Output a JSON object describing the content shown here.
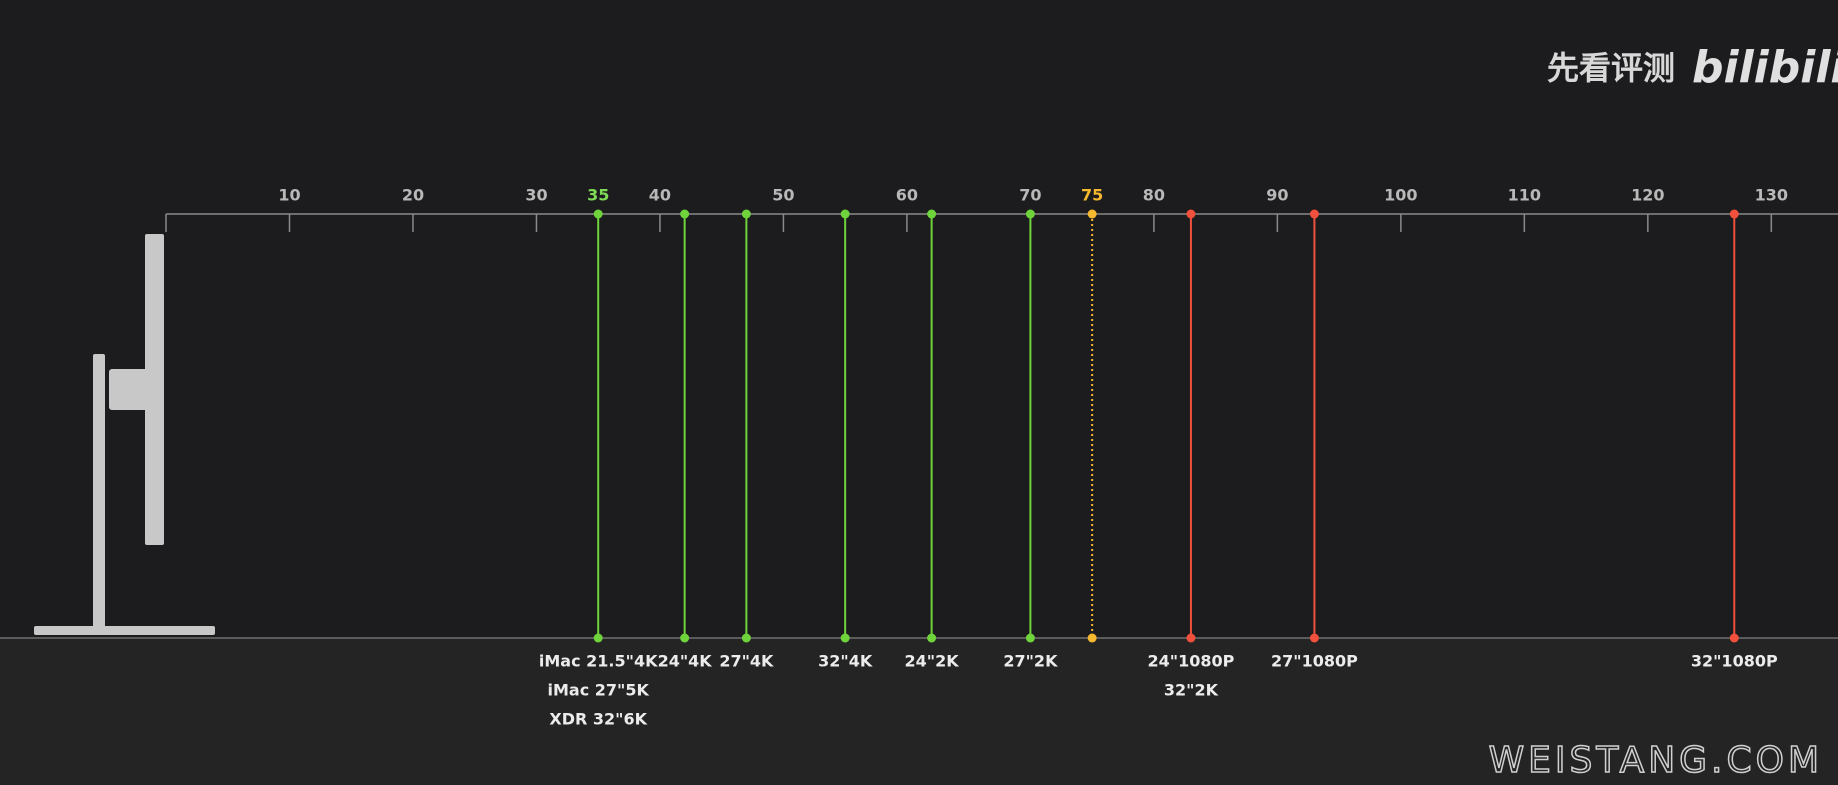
{
  "logo": {
    "channel": "先看评测",
    "brand": "bilibili"
  },
  "watermark": "WEISTANG.COM",
  "chart_data": {
    "type": "vline",
    "xlim": [
      0,
      135.4
    ],
    "xticks": [
      10,
      20,
      30,
      40,
      50,
      60,
      70,
      80,
      90,
      100,
      110,
      120,
      130
    ],
    "highlight_ticks": [
      {
        "value": 35,
        "color": "#7ed957"
      },
      {
        "value": 75,
        "color": "#f5b82e"
      }
    ],
    "markers": [
      {
        "x": 35,
        "color": "#6fd43c",
        "style": "solid",
        "labels": [
          "iMac 21.5\"4K",
          "iMac 27\"5K",
          "XDR 32\"6K"
        ]
      },
      {
        "x": 42,
        "color": "#6fd43c",
        "style": "solid",
        "labels": [
          "24\"4K"
        ]
      },
      {
        "x": 47,
        "color": "#6fd43c",
        "style": "solid",
        "labels": [
          "27\"4K"
        ]
      },
      {
        "x": 55,
        "color": "#6fd43c",
        "style": "solid",
        "labels": [
          "32\"4K"
        ]
      },
      {
        "x": 62,
        "color": "#6fd43c",
        "style": "solid",
        "labels": [
          "24\"2K"
        ]
      },
      {
        "x": 70,
        "color": "#6fd43c",
        "style": "solid",
        "labels": [
          "27\"2K"
        ]
      },
      {
        "x": 75,
        "color": "#f5b82e",
        "style": "dotted",
        "labels": []
      },
      {
        "x": 83,
        "color": "#f0503c",
        "style": "solid",
        "labels": [
          "24\"1080P",
          "32\"2K"
        ]
      },
      {
        "x": 93,
        "color": "#f0503c",
        "style": "solid",
        "labels": [
          "27\"1080P"
        ]
      },
      {
        "x": 127,
        "color": "#f0503c",
        "style": "solid",
        "labels": [
          "32\"1080P"
        ]
      }
    ]
  }
}
